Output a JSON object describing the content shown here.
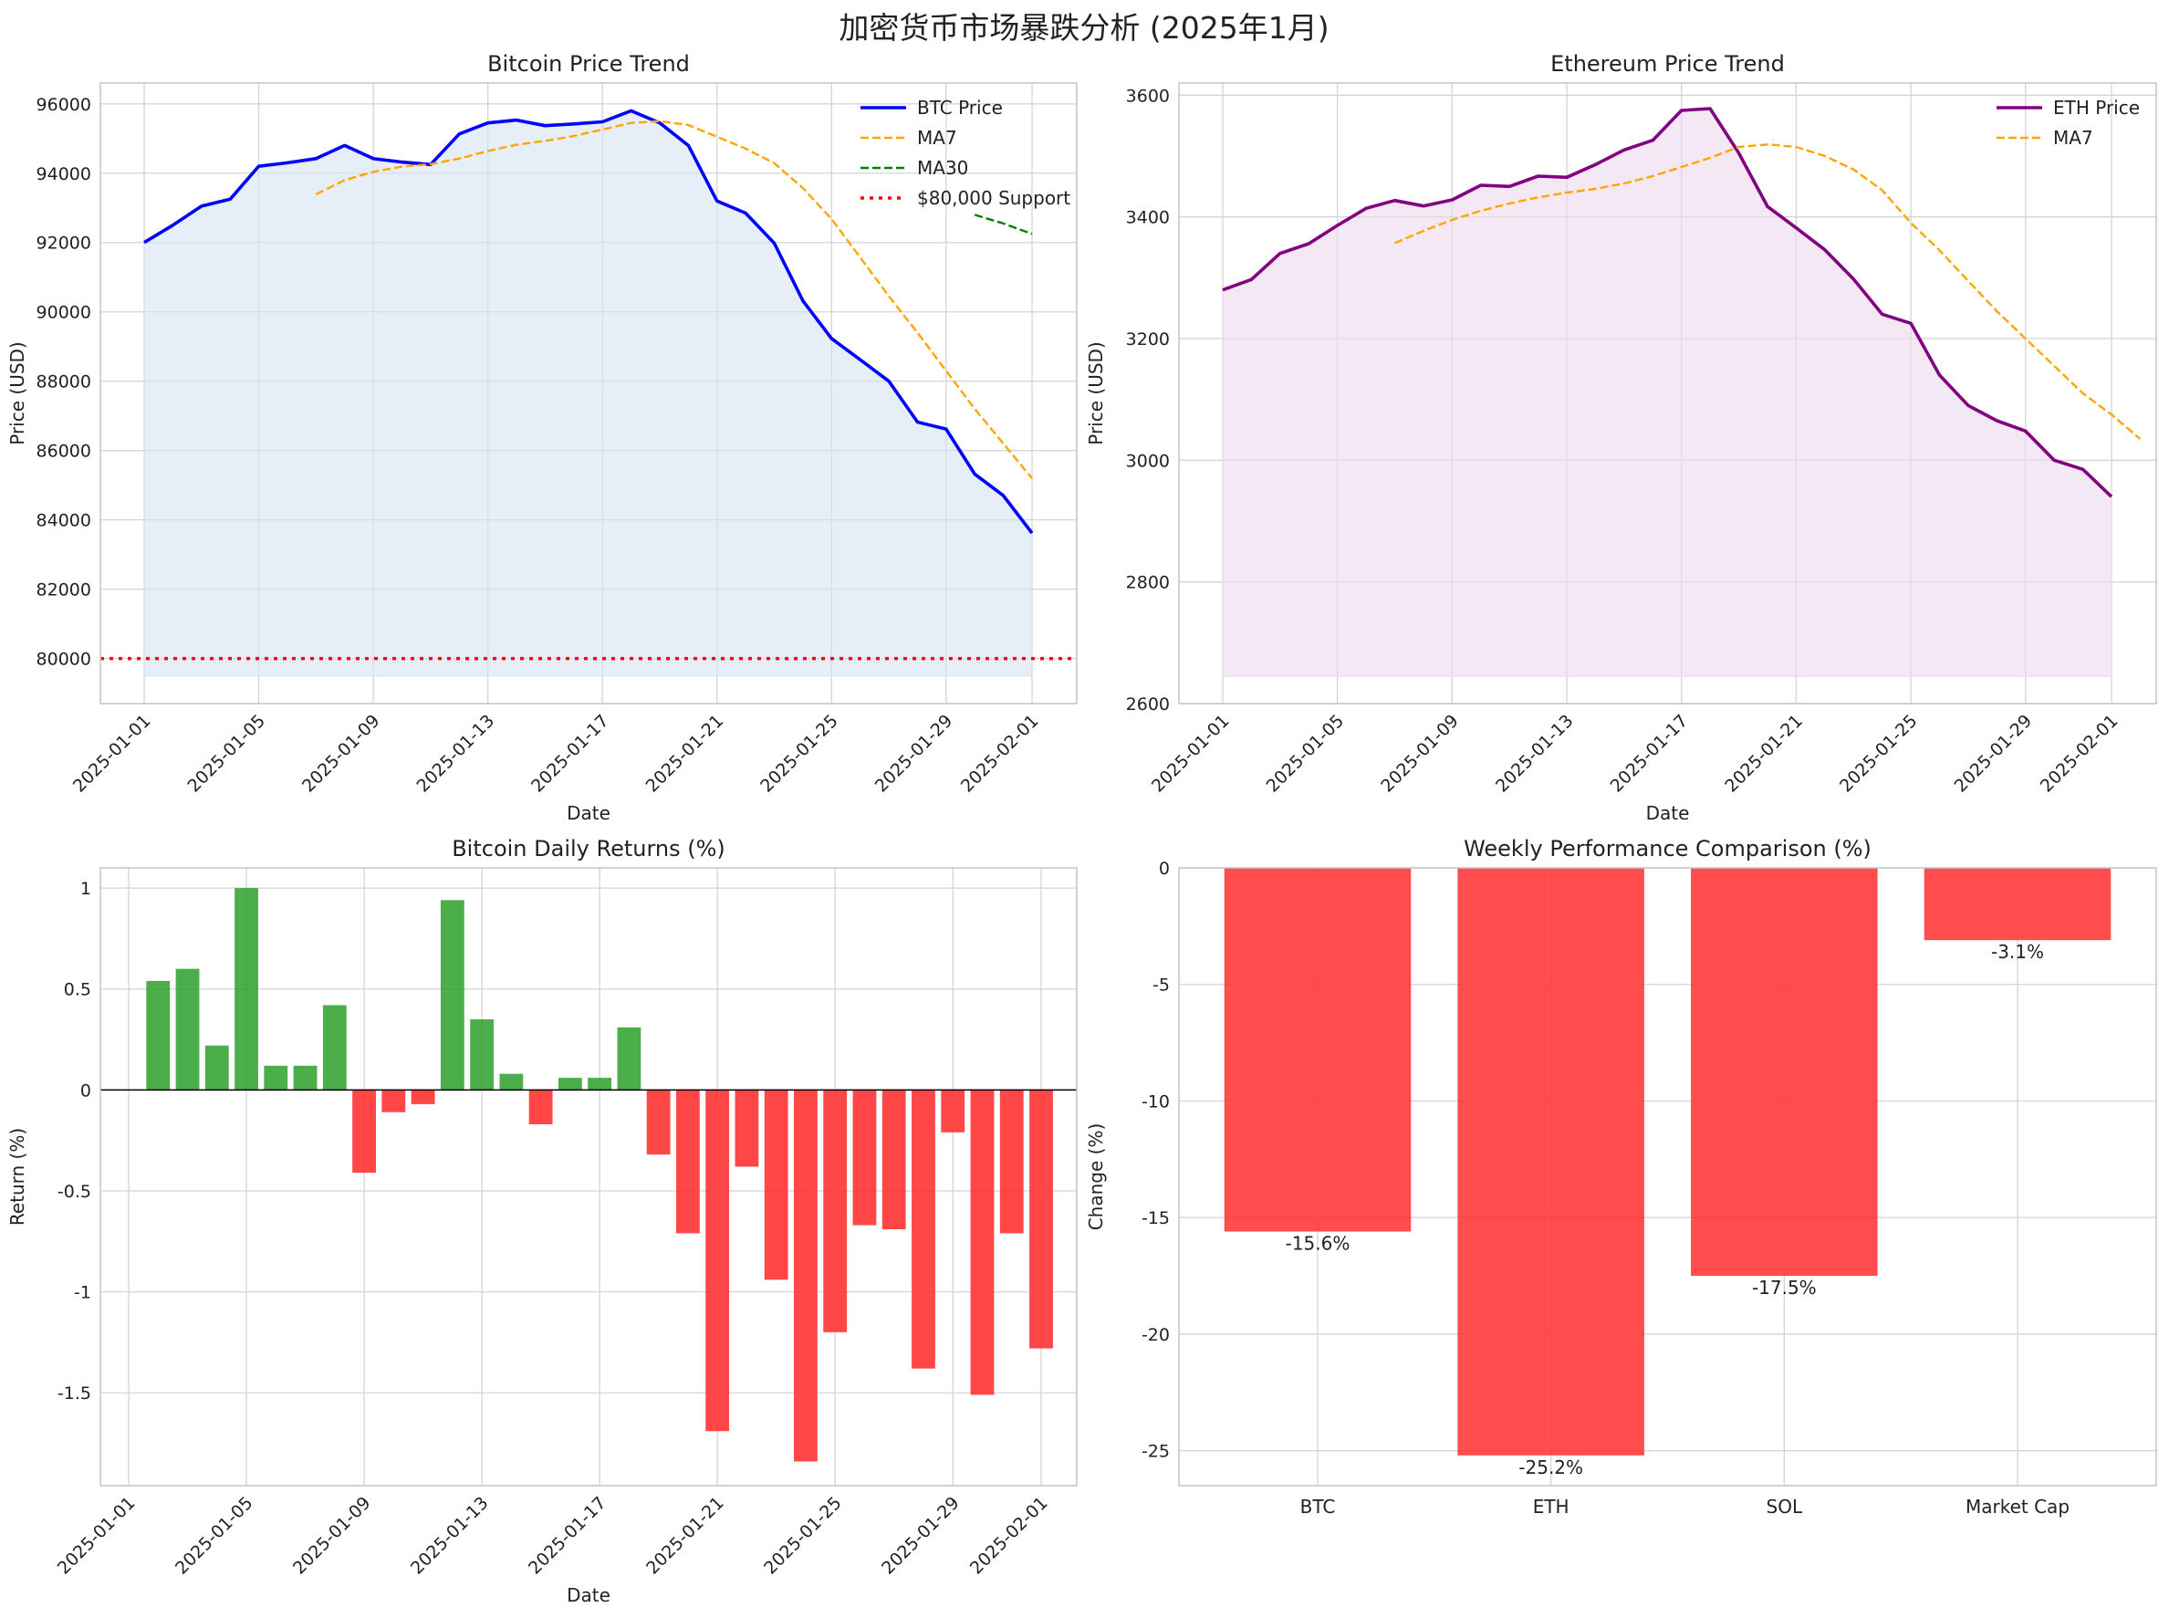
{
  "figure": {
    "title": "加密货币市场暴跌分析 (2025年1月)"
  },
  "chart_data": [
    {
      "id": "btc",
      "type": "line",
      "title": "Bitcoin Price Trend",
      "xlabel": "Date",
      "ylabel": "Price (USD)",
      "ylim": [
        78700,
        96600
      ],
      "yticks": [
        80000,
        82000,
        84000,
        86000,
        88000,
        90000,
        92000,
        94000,
        96000
      ],
      "xticks": [
        "2025-01-01",
        "2025-01-05",
        "2025-01-09",
        "2025-01-13",
        "2025-01-17",
        "2025-01-21",
        "2025-01-25",
        "2025-01-29",
        "2025-02-01"
      ],
      "legend_position": "top-right",
      "series": [
        {
          "name": "BTC Price",
          "color": "#0000ff",
          "style": "solid",
          "values": [
            92000,
            92500,
            93050,
            93250,
            94200,
            94300,
            94420,
            94800,
            94420,
            94320,
            94250,
            95130,
            95450,
            95530,
            95370,
            95420,
            95480,
            95800,
            95450,
            94800,
            93200,
            92850,
            91980,
            90320,
            89230,
            88620,
            88000,
            86820,
            86620,
            85320,
            84700,
            83620
          ]
        },
        {
          "name": "MA7",
          "color": "#ffa500",
          "style": "dashed",
          "start_index": 6,
          "values": [
            93390,
            93800,
            94040,
            94190,
            94260,
            94420,
            94640,
            94820,
            94930,
            95070,
            95260,
            95450,
            95500,
            95390,
            95050,
            94710,
            94290,
            93570,
            92680,
            91570,
            90450,
            89400,
            88300,
            87200,
            86200,
            85200
          ]
        },
        {
          "name": "MA30",
          "color": "#008000",
          "style": "dashed",
          "start_index": 29,
          "values": [
            92800,
            92550,
            92250
          ]
        },
        {
          "name": "$80,000 Support",
          "color": "#ff0000",
          "style": "dotted",
          "constant": 80000
        }
      ]
    },
    {
      "id": "eth",
      "type": "line",
      "title": "Ethereum Price Trend",
      "xlabel": "Date",
      "ylabel": "Price (USD)",
      "ylim": [
        2600,
        3620
      ],
      "yticks": [
        2600,
        2800,
        3000,
        3200,
        3400,
        3600
      ],
      "xticks": [
        "2025-01-01",
        "2025-01-05",
        "2025-01-09",
        "2025-01-13",
        "2025-01-17",
        "2025-01-21",
        "2025-01-25",
        "2025-01-29",
        "2025-02-01"
      ],
      "legend_position": "top-right",
      "series": [
        {
          "name": "ETH Price",
          "color": "#800080",
          "style": "solid",
          "values": [
            3280,
            3297,
            3340,
            3356,
            3386,
            3414,
            3427,
            3418,
            3428,
            3452,
            3450,
            3467,
            3465,
            3486,
            3510,
            3526,
            3575,
            3578,
            3505,
            3417,
            3382,
            3346,
            3298,
            3240,
            3225,
            3140,
            3090,
            3065,
            3048,
            3000,
            2985,
            2940
          ]
        },
        {
          "name": "MA7",
          "color": "#ffa500",
          "style": "dashed",
          "start_index": 6,
          "values": [
            3357,
            3377,
            3395,
            3410,
            3422,
            3432,
            3440,
            3446,
            3455,
            3467,
            3482,
            3497,
            3515,
            3519,
            3515,
            3500,
            3478,
            3444,
            3390,
            3345,
            3295,
            3245,
            3200,
            3155,
            3110,
            3075,
            3035
          ]
        }
      ]
    },
    {
      "id": "returns",
      "type": "bar",
      "title": "Bitcoin Daily Returns (%)",
      "xlabel": "Date",
      "ylabel": "Return (%)",
      "ylim": [
        -1.96,
        1.1
      ],
      "yticks": [
        -1.5,
        -1.0,
        -0.5,
        0.0,
        0.5,
        1.0
      ],
      "xticks": [
        "2025-01-01",
        "2025-01-05",
        "2025-01-09",
        "2025-01-13",
        "2025-01-17",
        "2025-01-21",
        "2025-01-25",
        "2025-01-29",
        "2025-02-01"
      ],
      "positive_color": "#2ca02c",
      "negative_color": "#ff3333",
      "start_index": 1,
      "values": [
        0.54,
        0.6,
        0.22,
        1.0,
        0.12,
        0.12,
        0.42,
        -0.41,
        -0.11,
        -0.07,
        0.94,
        0.35,
        0.08,
        -0.17,
        0.06,
        0.06,
        0.31,
        -0.32,
        -0.71,
        -1.69,
        -0.38,
        -0.94,
        -1.84,
        -1.2,
        -0.67,
        -0.69,
        -1.38,
        -0.21,
        -1.51,
        -0.71,
        -1.28
      ]
    },
    {
      "id": "weekly",
      "type": "bar",
      "title": "Weekly Performance Comparison (%)",
      "xlabel": "",
      "ylabel": "Change (%)",
      "ylim": [
        -26.5,
        0
      ],
      "yticks": [
        0,
        -5,
        -10,
        -15,
        -20,
        -25
      ],
      "color": "#ff3333",
      "categories": [
        "BTC",
        "ETH",
        "SOL",
        "Market Cap"
      ],
      "values": [
        -15.6,
        -25.2,
        -17.5,
        -3.1
      ],
      "labels": [
        "-15.6%",
        "-25.2%",
        "-17.5%",
        "-3.1%"
      ]
    }
  ]
}
